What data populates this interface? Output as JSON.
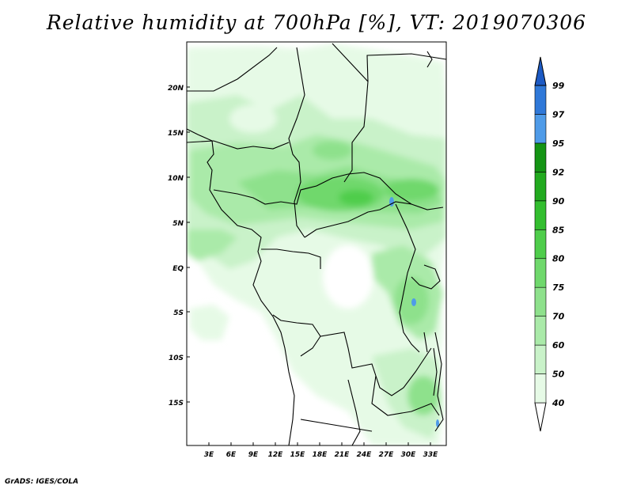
{
  "title": "Relative humidity at 700hPa [%], VT: 2019070306",
  "credit": "GrADS: IGES/COLA",
  "map": {
    "lat_labels": [
      "20N",
      "15N",
      "10N",
      "5N",
      "EQ",
      "5S",
      "10S",
      "15S"
    ],
    "lon_labels": [
      "3E",
      "6E",
      "9E",
      "12E",
      "15E",
      "18E",
      "21E",
      "24E",
      "27E",
      "30E",
      "33E"
    ]
  },
  "colorbar": {
    "levels": [
      "40",
      "50",
      "60",
      "70",
      "75",
      "80",
      "85",
      "90",
      "92",
      "95",
      "97",
      "99"
    ],
    "colors": [
      "#ffffff",
      "#e6fae6",
      "#c9f2c9",
      "#aaeaa9",
      "#8ee18c",
      "#6fd86c",
      "#4fcd4b",
      "#33be2f",
      "#22aa1f",
      "#149414",
      "#4f9be8",
      "#2f78d8",
      "#1c5ac4"
    ]
  }
}
